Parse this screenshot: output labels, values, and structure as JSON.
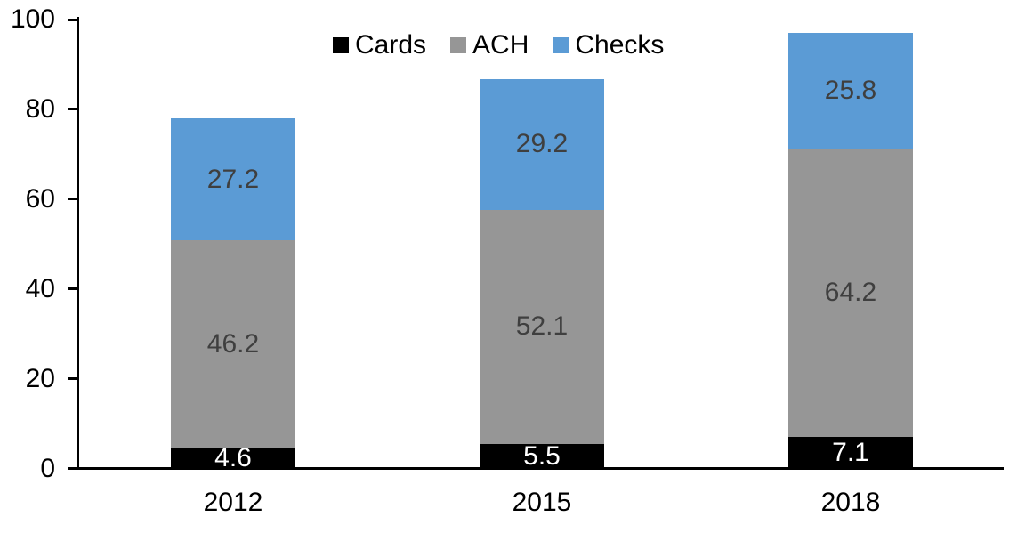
{
  "chart_data": {
    "type": "bar",
    "stacked": true,
    "title": "",
    "categories": [
      "2012",
      "2015",
      "2018"
    ],
    "series": [
      {
        "name": "Cards",
        "color": "#000000",
        "label_color": "#FFFFFF",
        "values": [
          4.6,
          5.5,
          7.1
        ]
      },
      {
        "name": "ACH",
        "color": "#969696",
        "label_color": "#3F3F3F",
        "values": [
          46.2,
          52.1,
          64.2
        ]
      },
      {
        "name": "Checks",
        "color": "#5B9BD5",
        "label_color": "#3F3F3F",
        "values": [
          27.2,
          29.2,
          25.8
        ]
      }
    ],
    "y_axis": {
      "min": 0,
      "max": 100,
      "ticks": [
        0,
        20,
        40,
        60,
        80,
        100
      ]
    },
    "legend": {
      "position": "top",
      "entries": [
        "Cards",
        "ACH",
        "Checks"
      ]
    },
    "grid": false,
    "axis_color": "#000000",
    "background_color": "#FFFFFF",
    "data_labels_decimals": 1
  }
}
